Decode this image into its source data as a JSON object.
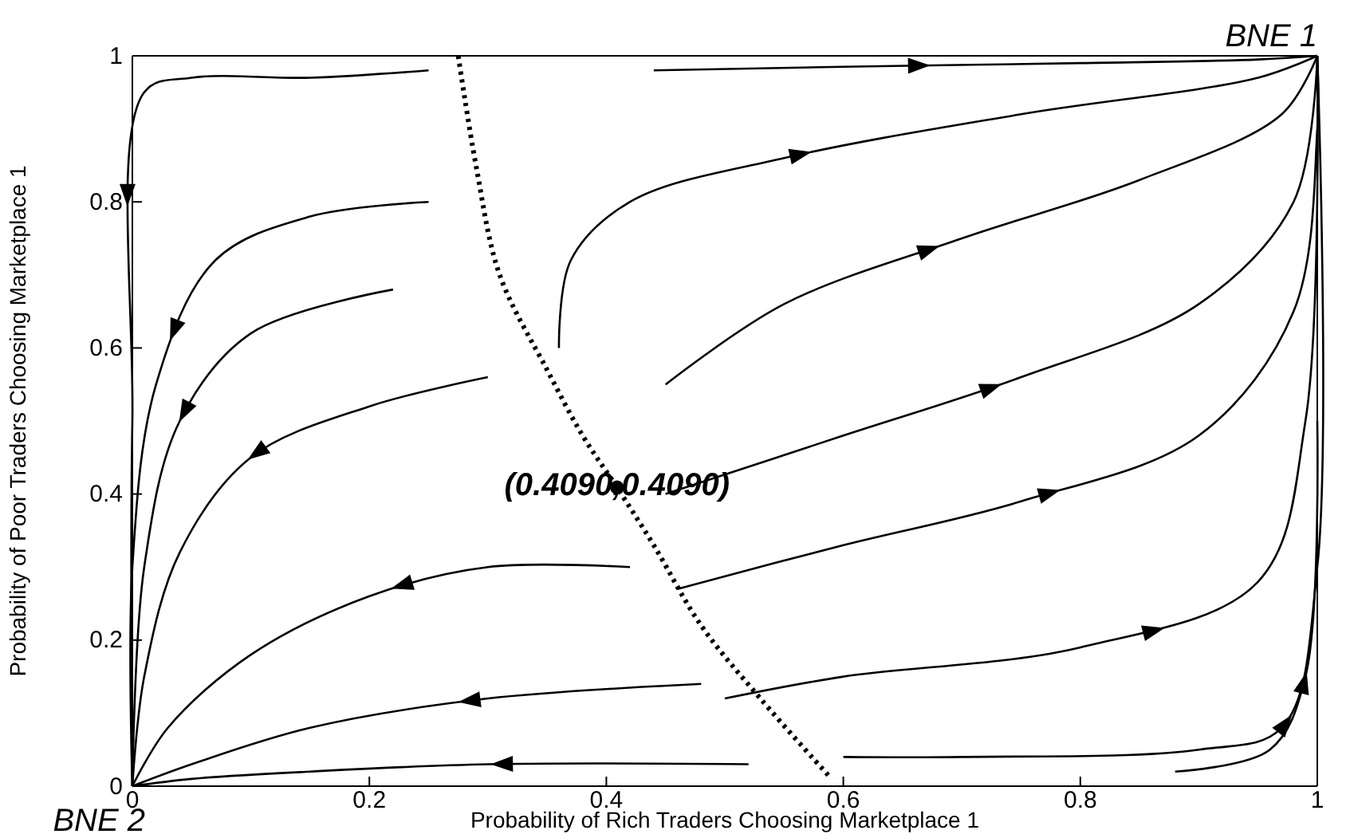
{
  "chart_data": {
    "type": "line",
    "xlabel": "Probability of Rich Traders Choosing Marketplace 1",
    "ylabel": "Probability of Poor Traders Choosing Marketplace 1",
    "xlim": [
      0,
      1
    ],
    "ylim": [
      0,
      1
    ],
    "xticks": [
      0,
      0.2,
      0.4,
      0.6,
      0.8,
      1
    ],
    "yticks": [
      0,
      0.2,
      0.4,
      0.6,
      0.8,
      1
    ],
    "grid": false,
    "line_style": "solid",
    "marker": "none",
    "annotations": [
      {
        "text": "BNE 1",
        "x": 1,
        "y": 1
      },
      {
        "text": "BNE 2",
        "x": 0,
        "y": 0
      },
      {
        "text": "(0.4090,0.4090)",
        "x": 0.409,
        "y": 0.409
      }
    ],
    "series": [
      {
        "color": "#000000",
        "x": [
          0.36,
          0.37,
          0.42,
          0.55,
          0.75,
          0.95,
          1
        ],
        "values": [
          0.6,
          0.72,
          0.8,
          0.86,
          0.92,
          0.97,
          1
        ]
      },
      {
        "color": "#000000",
        "x": [
          0.44,
          0.6,
          0.8,
          0.95,
          1
        ],
        "values": [
          0.98,
          0.985,
          0.99,
          0.995,
          1
        ]
      },
      {
        "color": "#000000",
        "x": [
          0.45,
          0.55,
          0.7,
          0.85,
          0.97,
          1
        ],
        "values": [
          0.55,
          0.66,
          0.75,
          0.83,
          0.92,
          1
        ]
      },
      {
        "color": "#000000",
        "x": [
          0.45,
          0.6,
          0.75,
          0.9,
          0.98,
          1
        ],
        "values": [
          0.4,
          0.48,
          0.56,
          0.66,
          0.8,
          1
        ]
      },
      {
        "color": "#000000",
        "x": [
          0.46,
          0.6,
          0.75,
          0.9,
          0.98,
          1,
          1
        ],
        "values": [
          0.27,
          0.33,
          0.39,
          0.48,
          0.65,
          0.9,
          1
        ]
      },
      {
        "color": "#000000",
        "x": [
          0.5,
          0.6,
          0.8,
          0.95,
          0.99,
          1
        ],
        "values": [
          0.12,
          0.15,
          0.19,
          0.28,
          0.5,
          1
        ]
      },
      {
        "color": "#000000",
        "x": [
          0.6,
          0.7,
          0.9,
          0.97,
          1,
          1
        ],
        "values": [
          0.04,
          0.04,
          0.05,
          0.08,
          0.3,
          1
        ]
      },
      {
        "color": "#000000",
        "x": [
          0.88,
          0.96,
          0.99,
          1
        ],
        "values": [
          0.02,
          0.05,
          0.15,
          0.5
        ]
      },
      {
        "color": "#000000",
        "x": [
          0.25,
          0.15,
          0.05,
          0.01,
          0,
          0
        ],
        "values": [
          0.98,
          0.97,
          0.97,
          0.95,
          0.5,
          0
        ]
      },
      {
        "color": "#000000",
        "x": [
          0.25,
          0.15,
          0.07,
          0.02,
          0,
          0
        ],
        "values": [
          0.8,
          0.78,
          0.72,
          0.55,
          0.3,
          0
        ]
      },
      {
        "color": "#000000",
        "x": [
          0.22,
          0.1,
          0.04,
          0.01,
          0
        ],
        "values": [
          0.68,
          0.62,
          0.5,
          0.3,
          0
        ]
      },
      {
        "color": "#000000",
        "x": [
          0.3,
          0.2,
          0.1,
          0.04,
          0.01,
          0
        ],
        "values": [
          0.56,
          0.52,
          0.45,
          0.32,
          0.15,
          0
        ]
      },
      {
        "color": "#000000",
        "x": [
          0.42,
          0.3,
          0.2,
          0.1,
          0.03,
          0
        ],
        "values": [
          0.3,
          0.3,
          0.26,
          0.18,
          0.08,
          0
        ]
      },
      {
        "color": "#000000",
        "x": [
          0.48,
          0.3,
          0.15,
          0.05,
          0
        ],
        "values": [
          0.14,
          0.12,
          0.08,
          0.03,
          0
        ]
      },
      {
        "color": "#000000",
        "x": [
          0.52,
          0.3,
          0.15,
          0.05,
          0
        ],
        "values": [
          0.03,
          0.03,
          0.02,
          0.01,
          0
        ]
      },
      {
        "color": "#000000",
        "line_style": "dotted",
        "x": [
          0.275,
          0.29,
          0.31,
          0.35,
          0.38,
          0.409,
          0.44,
          0.48,
          0.53,
          0.59
        ],
        "values": [
          1,
          0.85,
          0.7,
          0.57,
          0.48,
          0.409,
          0.33,
          0.22,
          0.12,
          0.01
        ]
      },
      {
        "type": "scatter",
        "marker": "circle",
        "color": "#000000",
        "x": [
          0.409
        ],
        "values": [
          0.409
        ]
      }
    ]
  }
}
